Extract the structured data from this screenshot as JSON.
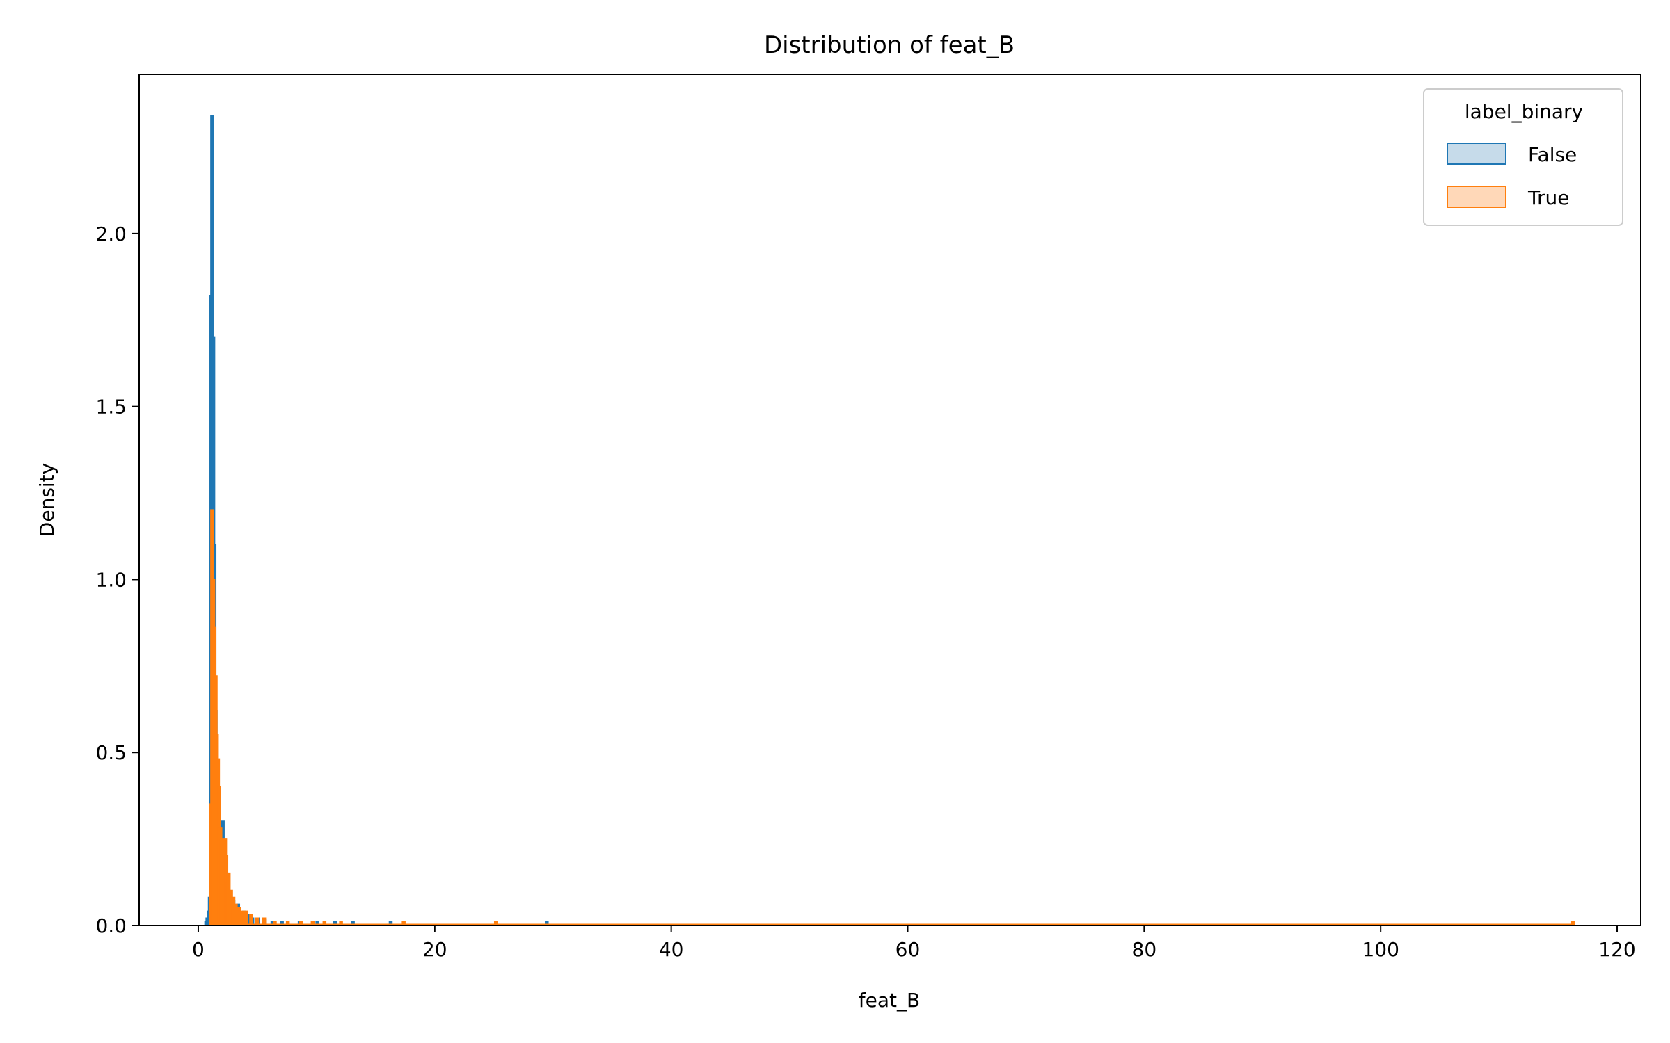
{
  "chart_data": {
    "type": "histogram",
    "title": "Distribution of feat_B",
    "xlabel": "feat_B",
    "ylabel": "Density",
    "xlim": [
      -5,
      122
    ],
    "ylim": [
      0,
      2.46
    ],
    "xticks": [
      0,
      20,
      40,
      60,
      80,
      100,
      120
    ],
    "yticks": [
      0.0,
      0.5,
      1.0,
      1.5,
      2.0
    ],
    "xtick_labels": [
      "0",
      "20",
      "40",
      "60",
      "80",
      "100",
      "120"
    ],
    "ytick_labels": [
      "0.0",
      "0.5",
      "1.0",
      "1.5",
      "2.0"
    ],
    "grid": false,
    "legend": {
      "title": "label_binary",
      "placement": "top-right",
      "entries": [
        {
          "label": "False",
          "color": "#1f77b4",
          "fill": "#c6dbea"
        },
        {
          "label": "True",
          "color": "#ff7f0e",
          "fill": "#ffd8b8"
        }
      ]
    },
    "bin_width": 0.1,
    "series": [
      {
        "name": "False",
        "color": "#1f77b4",
        "x": [
          0.6,
          0.7,
          0.8,
          0.9,
          1.0,
          1.1,
          1.2,
          1.3,
          1.4,
          1.5,
          1.6,
          1.7,
          1.8,
          1.9,
          2.0,
          2.1,
          2.2,
          2.3,
          2.4,
          2.5,
          2.7,
          2.9,
          3.1,
          3.3,
          3.5,
          3.8,
          4.1,
          4.5,
          5.0,
          5.5,
          6.2,
          7.0,
          8.5,
          10.0,
          11.5,
          13.0,
          16.2,
          29.4
        ],
        "y": [
          0.01,
          0.02,
          0.04,
          0.08,
          1.82,
          2.34,
          1.7,
          1.1,
          0.62,
          0.48,
          0.36,
          0.25,
          0.22,
          0.17,
          0.3,
          0.18,
          0.11,
          0.15,
          0.08,
          0.1,
          0.06,
          0.07,
          0.04,
          0.06,
          0.03,
          0.04,
          0.03,
          0.02,
          0.02,
          0.015,
          0.01,
          0.01,
          0.01,
          0.01,
          0.01,
          0.01,
          0.01,
          0.01
        ]
      },
      {
        "name": "True",
        "color": "#ff7f0e",
        "x": [
          1.0,
          1.1,
          1.2,
          1.3,
          1.4,
          1.5,
          1.6,
          1.7,
          1.8,
          1.9,
          2.0,
          2.1,
          2.2,
          2.3,
          2.4,
          2.5,
          2.7,
          2.9,
          3.1,
          3.4,
          3.7,
          4.0,
          4.4,
          4.9,
          5.5,
          6.4,
          7.5,
          8.6,
          9.6,
          10.6,
          12.0,
          17.3,
          25.1,
          116.2
        ],
        "y": [
          0.35,
          1.2,
          1.0,
          0.86,
          0.72,
          0.55,
          0.48,
          0.4,
          0.28,
          0.25,
          0.2,
          0.18,
          0.25,
          0.2,
          0.12,
          0.15,
          0.1,
          0.08,
          0.06,
          0.05,
          0.04,
          0.04,
          0.03,
          0.02,
          0.02,
          0.01,
          0.01,
          0.01,
          0.01,
          0.01,
          0.01,
          0.01,
          0.01,
          0.01
        ]
      }
    ]
  }
}
